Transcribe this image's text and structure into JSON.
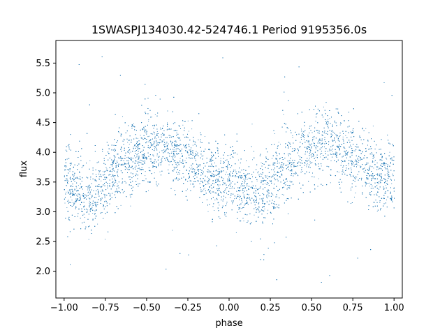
{
  "chart_data": {
    "type": "scatter",
    "title": "1SWASPJ134030.42-524746.1 Period 9195356.0s",
    "xlabel": "phase",
    "ylabel": "flux",
    "xlim": [
      -1.05,
      1.05
    ],
    "ylim": [
      1.55,
      5.88
    ],
    "xticks": [
      -1.0,
      -0.75,
      -0.5,
      -0.25,
      0.0,
      0.25,
      0.5,
      0.75,
      1.0
    ],
    "xtick_labels": [
      "−1.00",
      "−0.75",
      "−0.50",
      "−0.25",
      "0.00",
      "0.25",
      "0.50",
      "0.75",
      "1.00"
    ],
    "yticks": [
      2.0,
      2.5,
      3.0,
      3.5,
      4.0,
      4.5,
      5.0,
      5.5
    ],
    "ytick_labels": [
      "2.0",
      "2.5",
      "3.0",
      "3.5",
      "4.0",
      "4.5",
      "5.0",
      "5.5"
    ],
    "grid": false,
    "point_color": "#1f77b4",
    "series": [
      {
        "profile": {
          "phase": [
            0.0,
            0.05,
            0.1,
            0.15,
            0.2,
            0.25,
            0.3,
            0.35,
            0.4,
            0.45,
            0.5,
            0.55,
            0.6,
            0.65,
            0.7,
            0.75,
            0.8,
            0.85,
            0.9,
            0.95,
            1.0
          ],
          "median_flux": [
            3.5,
            3.4,
            3.35,
            3.3,
            3.35,
            3.5,
            3.7,
            3.85,
            3.95,
            4.0,
            4.05,
            4.1,
            4.15,
            4.1,
            4.0,
            3.9,
            3.8,
            3.7,
            3.6,
            3.55,
            3.5
          ],
          "scatter": 0.28
        },
        "n_points": 9000,
        "outlier_range": [
          1.75,
          5.7
        ]
      }
    ]
  }
}
